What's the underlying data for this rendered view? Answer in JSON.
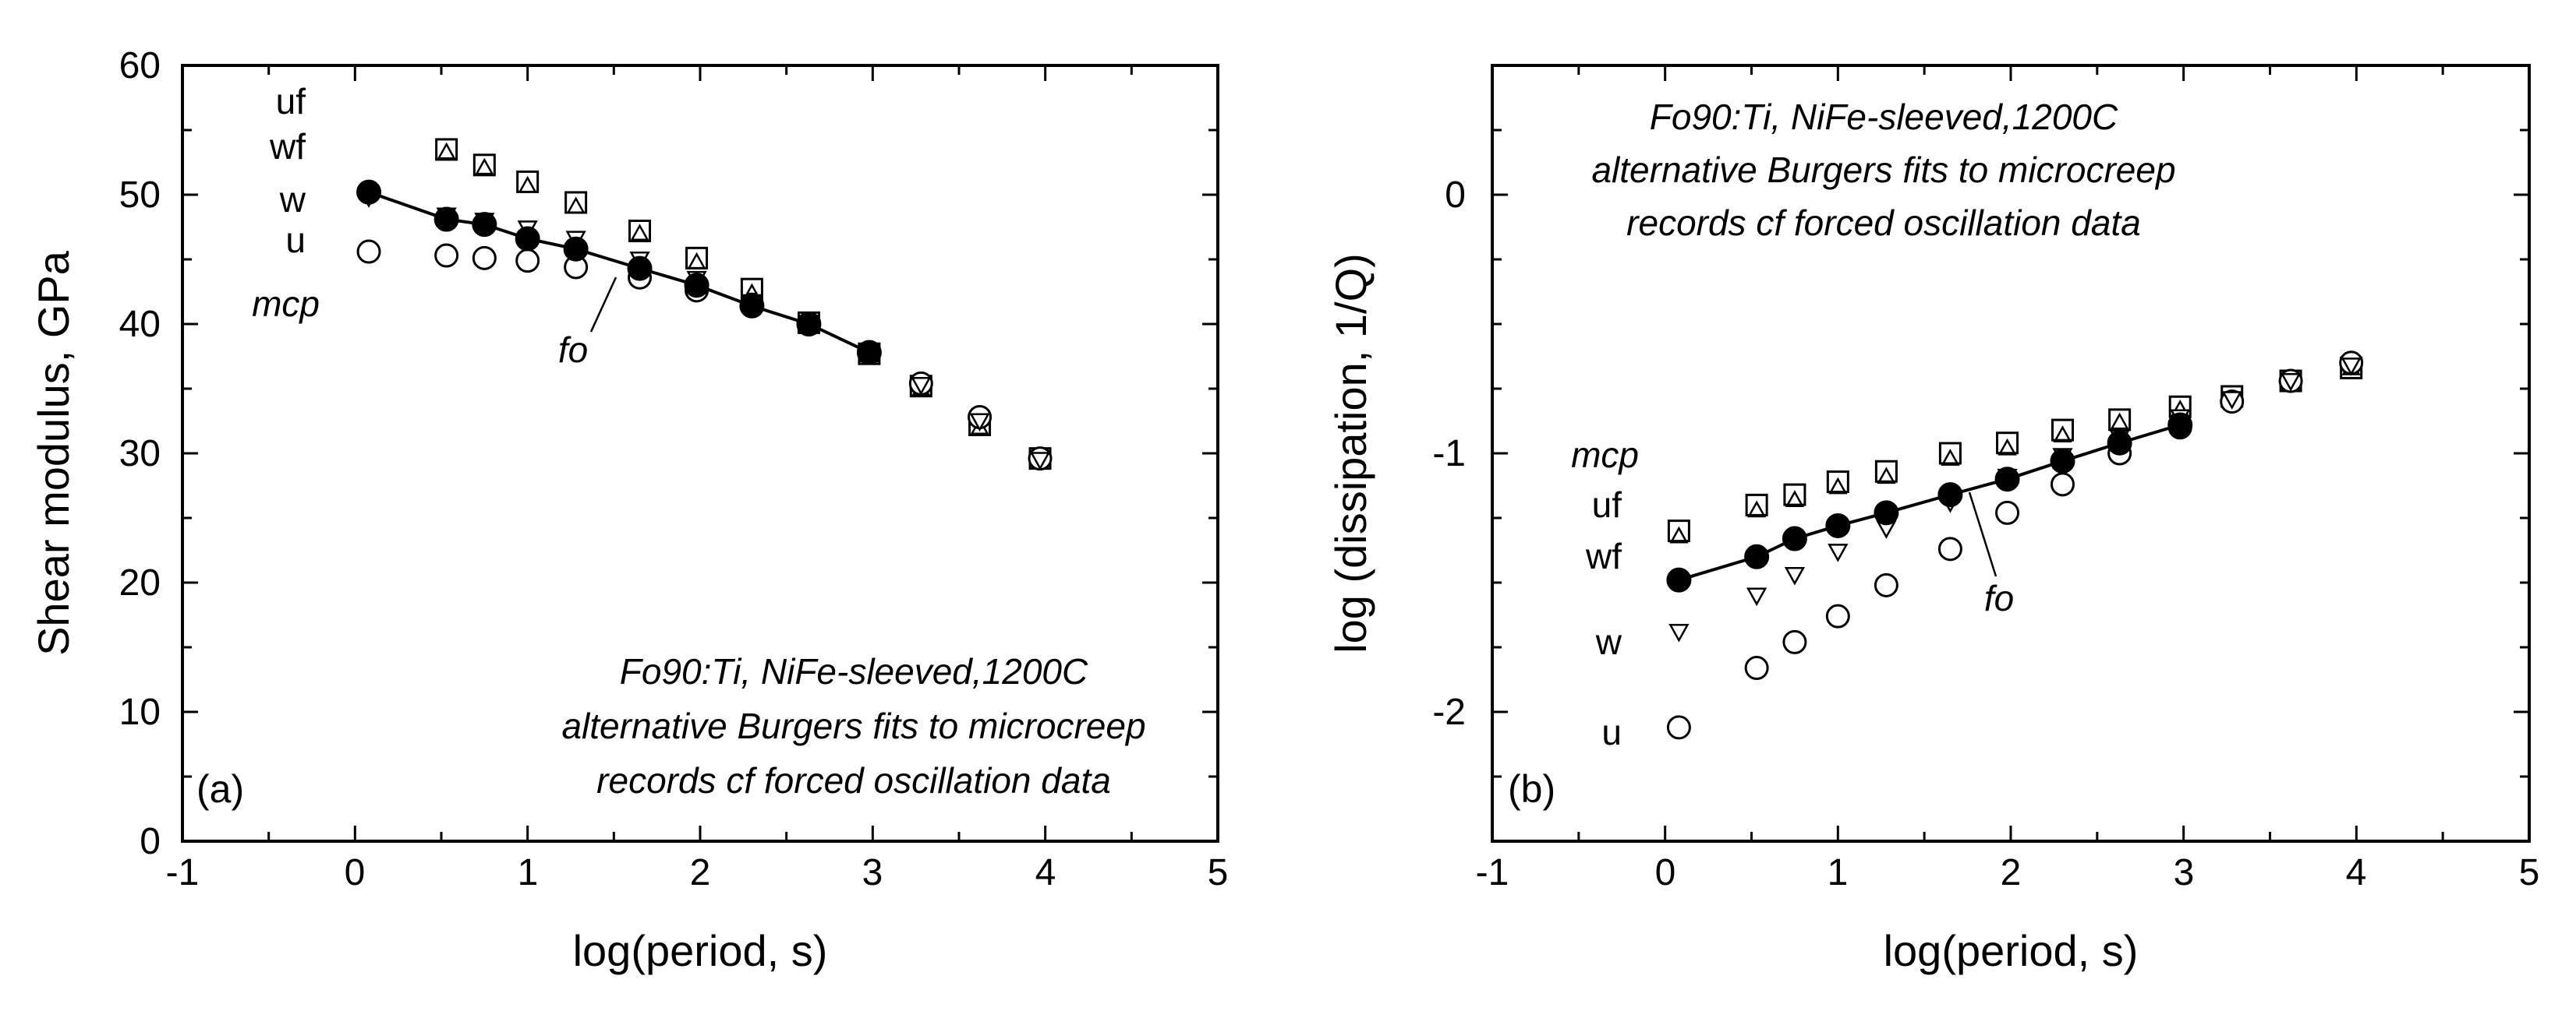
{
  "chart_data": [
    {
      "panel": "(a)",
      "type": "scatter",
      "xlabel": "log(period, s)",
      "ylabel": "Shear modulus, GPa",
      "xlim": [
        -1,
        5
      ],
      "ylim": [
        0,
        60
      ],
      "xticks": [
        "-1",
        "0",
        "1",
        "2",
        "3",
        "4",
        "5"
      ],
      "yticks": [
        "0",
        "10",
        "20",
        "30",
        "40",
        "50",
        "60"
      ],
      "annotation": [
        "Fo90:Ti, NiFe-sleeved,1200C",
        "alternative Burgers fits to microcreep",
        "records cf forced oscillation data"
      ],
      "legend_labels": {
        "mcp": "mcp",
        "uf": "uf",
        "wf": "wf",
        "w": "w",
        "u": "u",
        "fo": "fo"
      },
      "series": [
        {
          "name": "uf",
          "marker": "square",
          "x": [
            0.53,
            0.75,
            1.0,
            1.28,
            1.65,
            1.98,
            2.3,
            2.63,
            2.98,
            3.28,
            3.62,
            3.97
          ],
          "y": [
            53.5,
            52.3,
            51.0,
            49.4,
            47.2,
            45.1,
            42.7,
            40.1,
            37.7,
            35.2,
            32.2,
            29.6
          ]
        },
        {
          "name": "wf",
          "marker": "triangle-up",
          "x": [
            0.53,
            0.75,
            1.0,
            1.28,
            1.65,
            1.98,
            2.3,
            2.63,
            2.98,
            3.28,
            3.62,
            3.97
          ],
          "y": [
            53.3,
            52.1,
            50.7,
            49.1,
            47.0,
            44.8,
            42.4,
            40.0,
            37.6,
            35.0,
            32.0,
            29.5
          ]
        },
        {
          "name": "w",
          "marker": "triangle-down",
          "x": [
            0.08,
            0.53,
            0.75,
            1.0,
            1.28,
            1.65,
            1.98,
            2.3,
            2.63,
            2.98,
            3.28,
            3.62,
            3.97
          ],
          "y": [
            49.8,
            48.4,
            48.0,
            47.4,
            46.6,
            45.0,
            43.5,
            41.7,
            40.1,
            37.8,
            35.3,
            32.5,
            29.5
          ]
        },
        {
          "name": "u",
          "marker": "circle-open",
          "x": [
            0.08,
            0.53,
            0.75,
            1.0,
            1.28,
            1.65,
            1.98,
            2.3,
            2.63,
            2.98,
            3.28,
            3.62,
            3.97
          ],
          "y": [
            45.6,
            45.3,
            45.1,
            44.9,
            44.4,
            43.6,
            42.6,
            41.5,
            40.0,
            37.8,
            35.4,
            32.8,
            29.6
          ]
        },
        {
          "name": "fo",
          "marker": "circle-filled",
          "line": true,
          "x": [
            0.08,
            0.53,
            0.75,
            1.0,
            1.28,
            1.65,
            1.98,
            2.3,
            2.63,
            2.98
          ],
          "y": [
            50.2,
            48.1,
            47.7,
            46.6,
            45.8,
            44.3,
            43.0,
            41.4,
            40.0,
            37.8
          ]
        }
      ]
    },
    {
      "panel": "(b)",
      "type": "scatter",
      "xlabel": "log(period, s)",
      "ylabel": "log (dissipation, 1/Q)",
      "xlim": [
        -1,
        5
      ],
      "ylim": [
        -2.5,
        0.5
      ],
      "xticks": [
        "-1",
        "0",
        "1",
        "2",
        "3",
        "4",
        "5"
      ],
      "yticks": [
        "-2",
        "-1",
        "0"
      ],
      "annotation": [
        "Fo90:Ti, NiFe-sleeved,1200C",
        "alternative Burgers fits to microcreep",
        "records cf forced oscillation data"
      ],
      "legend_labels": {
        "mcp": "mcp",
        "uf": "uf",
        "wf": "wf",
        "w": "w",
        "u": "u",
        "fo": "fo"
      },
      "series": [
        {
          "name": "uf",
          "marker": "square",
          "x": [
            0.08,
            0.53,
            0.75,
            1.0,
            1.28,
            1.65,
            1.98,
            2.3,
            2.63,
            2.98,
            3.28,
            3.62,
            3.97
          ],
          "y": [
            -1.3,
            -1.2,
            -1.16,
            -1.11,
            -1.07,
            -1.0,
            -0.96,
            -0.91,
            -0.87,
            -0.82,
            -0.78,
            -0.72,
            -0.67
          ]
        },
        {
          "name": "wf",
          "marker": "triangle-up",
          "x": [
            0.08,
            0.53,
            0.75,
            1.0,
            1.28,
            1.65,
            1.98,
            2.3,
            2.63,
            2.98,
            3.28,
            3.62,
            3.97
          ],
          "y": [
            -1.32,
            -1.22,
            -1.18,
            -1.13,
            -1.09,
            -1.02,
            -0.98,
            -0.93,
            -0.88,
            -0.83,
            -0.79,
            -0.73,
            -0.67
          ]
        },
        {
          "name": "w",
          "marker": "triangle-down",
          "x": [
            0.08,
            0.53,
            0.75,
            1.0,
            1.28,
            1.65,
            1.98,
            2.3,
            2.63,
            2.98,
            3.28,
            3.62,
            3.97
          ],
          "y": [
            -1.69,
            -1.55,
            -1.47,
            -1.38,
            -1.29,
            -1.19,
            -1.09,
            -1.01,
            -0.94,
            -0.86,
            -0.79,
            -0.72,
            -0.66
          ]
        },
        {
          "name": "u",
          "marker": "circle-open",
          "x": [
            0.08,
            0.53,
            0.75,
            1.0,
            1.28,
            1.65,
            1.98,
            2.3,
            2.63,
            2.98,
            3.28,
            3.62,
            3.97
          ],
          "y": [
            -2.06,
            -1.83,
            -1.73,
            -1.63,
            -1.51,
            -1.37,
            -1.23,
            -1.12,
            -1.0,
            -0.9,
            -0.8,
            -0.72,
            -0.65
          ]
        },
        {
          "name": "fo",
          "marker": "circle-filled",
          "line": true,
          "x": [
            0.08,
            0.53,
            0.75,
            1.0,
            1.28,
            1.65,
            1.98,
            2.3,
            2.63,
            2.98
          ],
          "y": [
            -1.49,
            -1.4,
            -1.33,
            -1.28,
            -1.23,
            -1.16,
            -1.1,
            -1.03,
            -0.96,
            -0.89
          ]
        }
      ]
    }
  ]
}
